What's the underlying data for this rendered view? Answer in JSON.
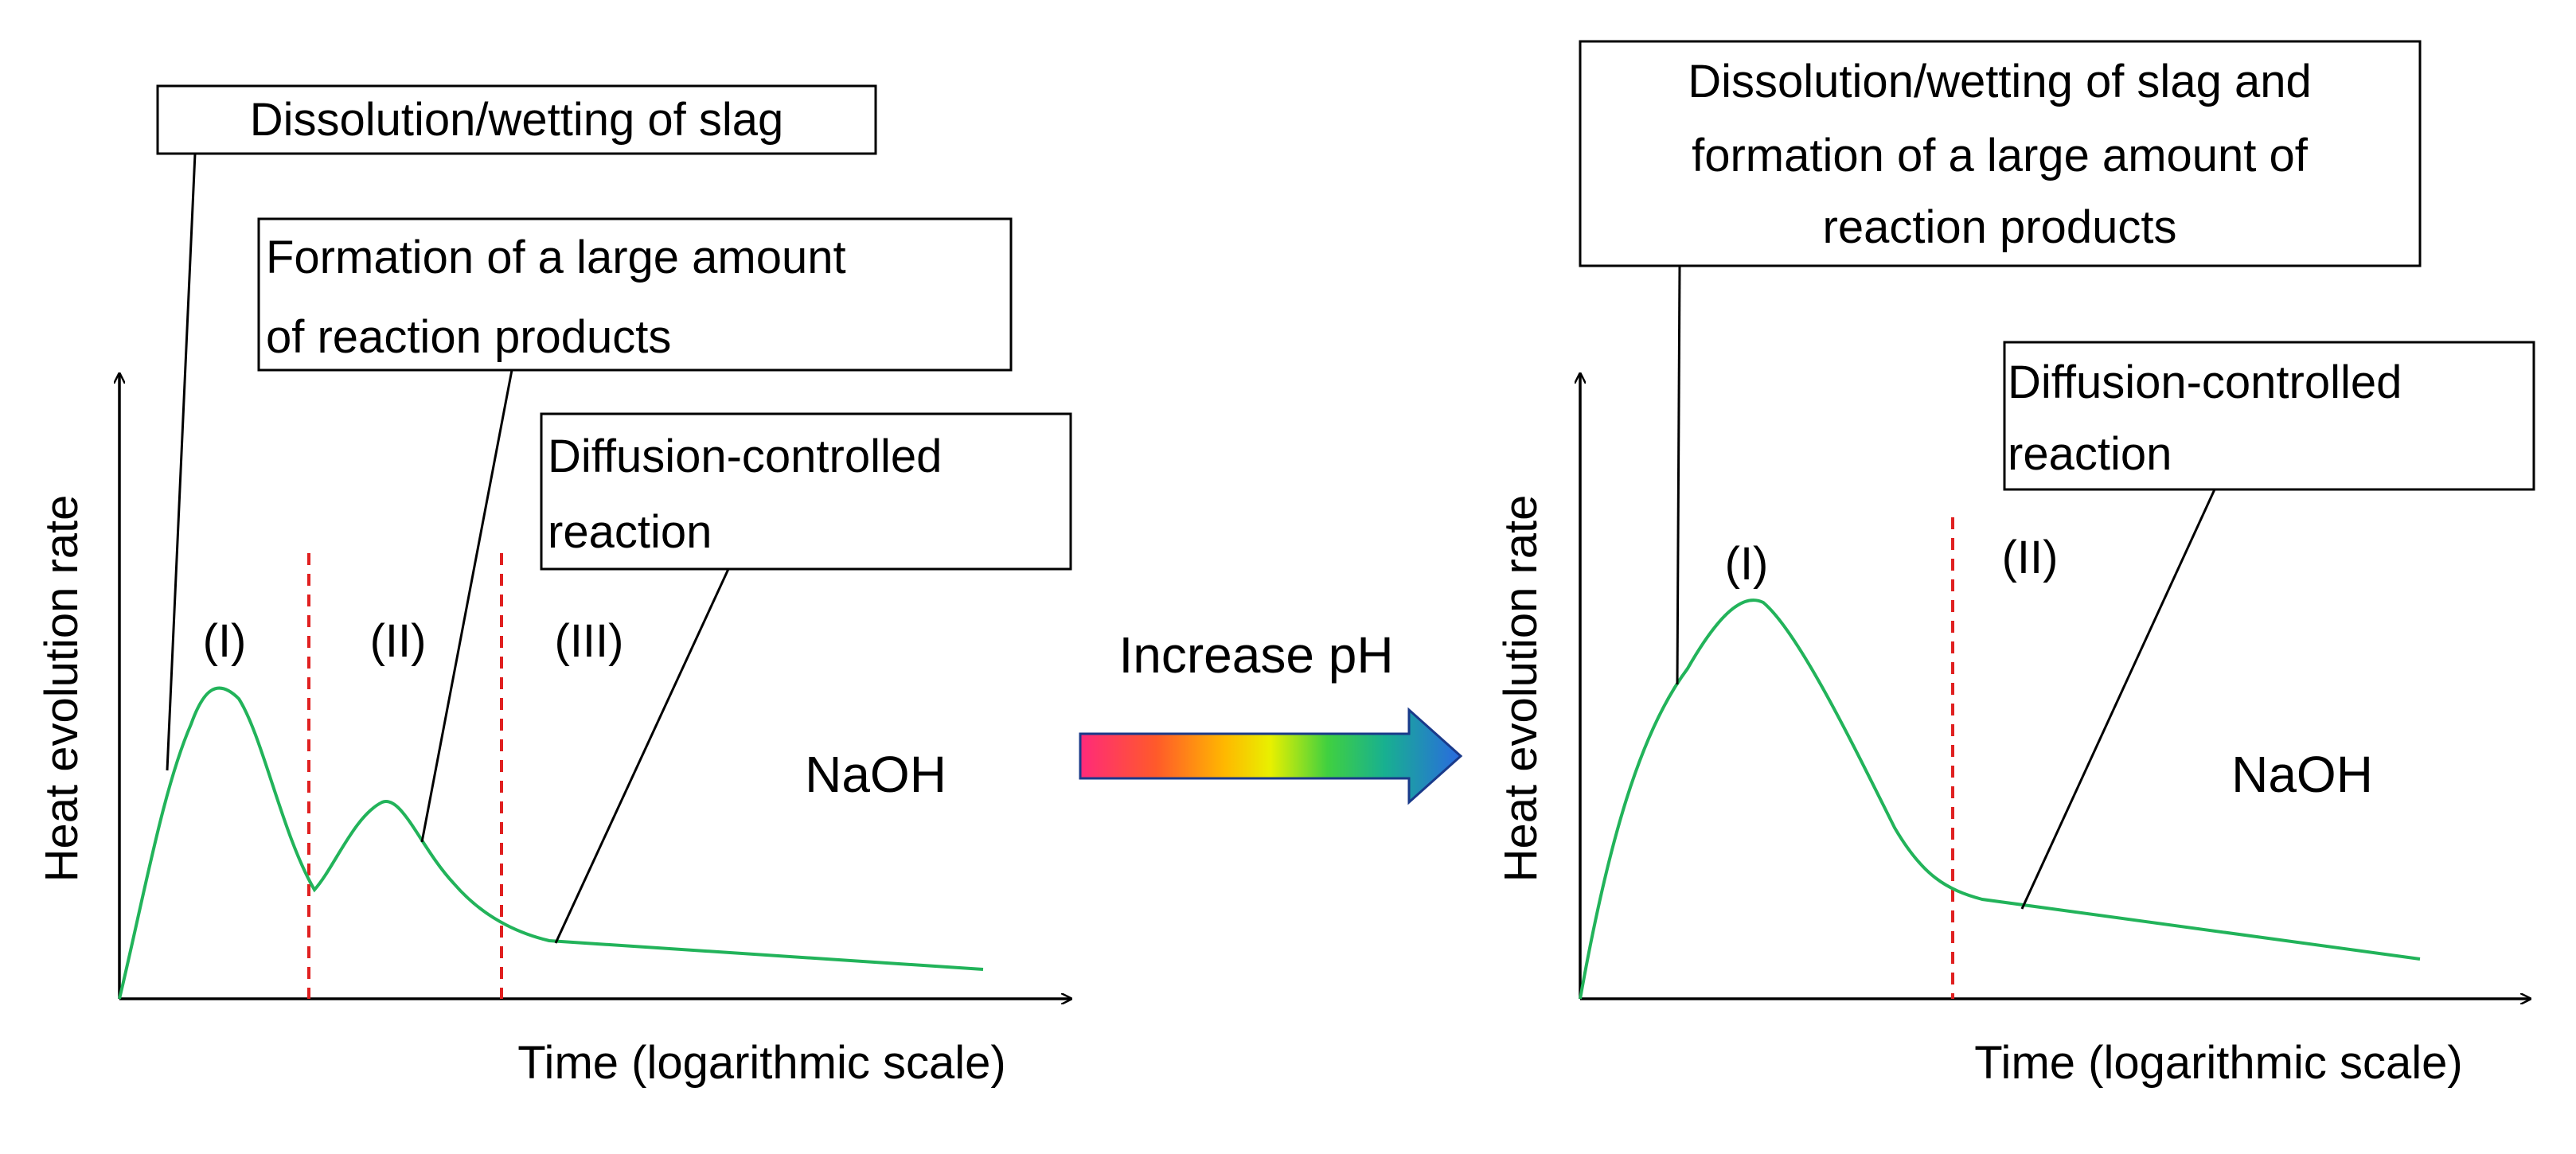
{
  "left_panel": {
    "y_axis_label": "Heat evolution rate",
    "x_axis_label": "Time (logarithmic scale)",
    "regions": [
      "(I)",
      "(II)",
      "(III)"
    ],
    "solution": "NaOH",
    "box_dissolution": [
      "Dissolution/wetting of slag"
    ],
    "box_formation": [
      "Formation of a large amount",
      "of reaction products"
    ],
    "box_diffusion": [
      "Diffusion-controlled",
      "reaction"
    ]
  },
  "arrow": {
    "label": "Increase pH",
    "gradient_colors": [
      "#ff2a7a",
      "#ff5a2a",
      "#ffb800",
      "#e8f000",
      "#40d040",
      "#18b090",
      "#2a6ae0"
    ]
  },
  "right_panel": {
    "y_axis_label": "Heat evolution rate",
    "x_axis_label": "Time (logarithmic scale)",
    "regions": [
      "(I)",
      "(II)"
    ],
    "solution": "NaOH",
    "box_dissolution_formation": [
      "Dissolution/wetting of slag and",
      "formation of a large amount of",
      "reaction products"
    ],
    "box_diffusion": [
      "Diffusion-controlled",
      "reaction"
    ]
  },
  "colors": {
    "curve": "#22b35a",
    "divider": "#e02020",
    "axis": "#000000"
  }
}
